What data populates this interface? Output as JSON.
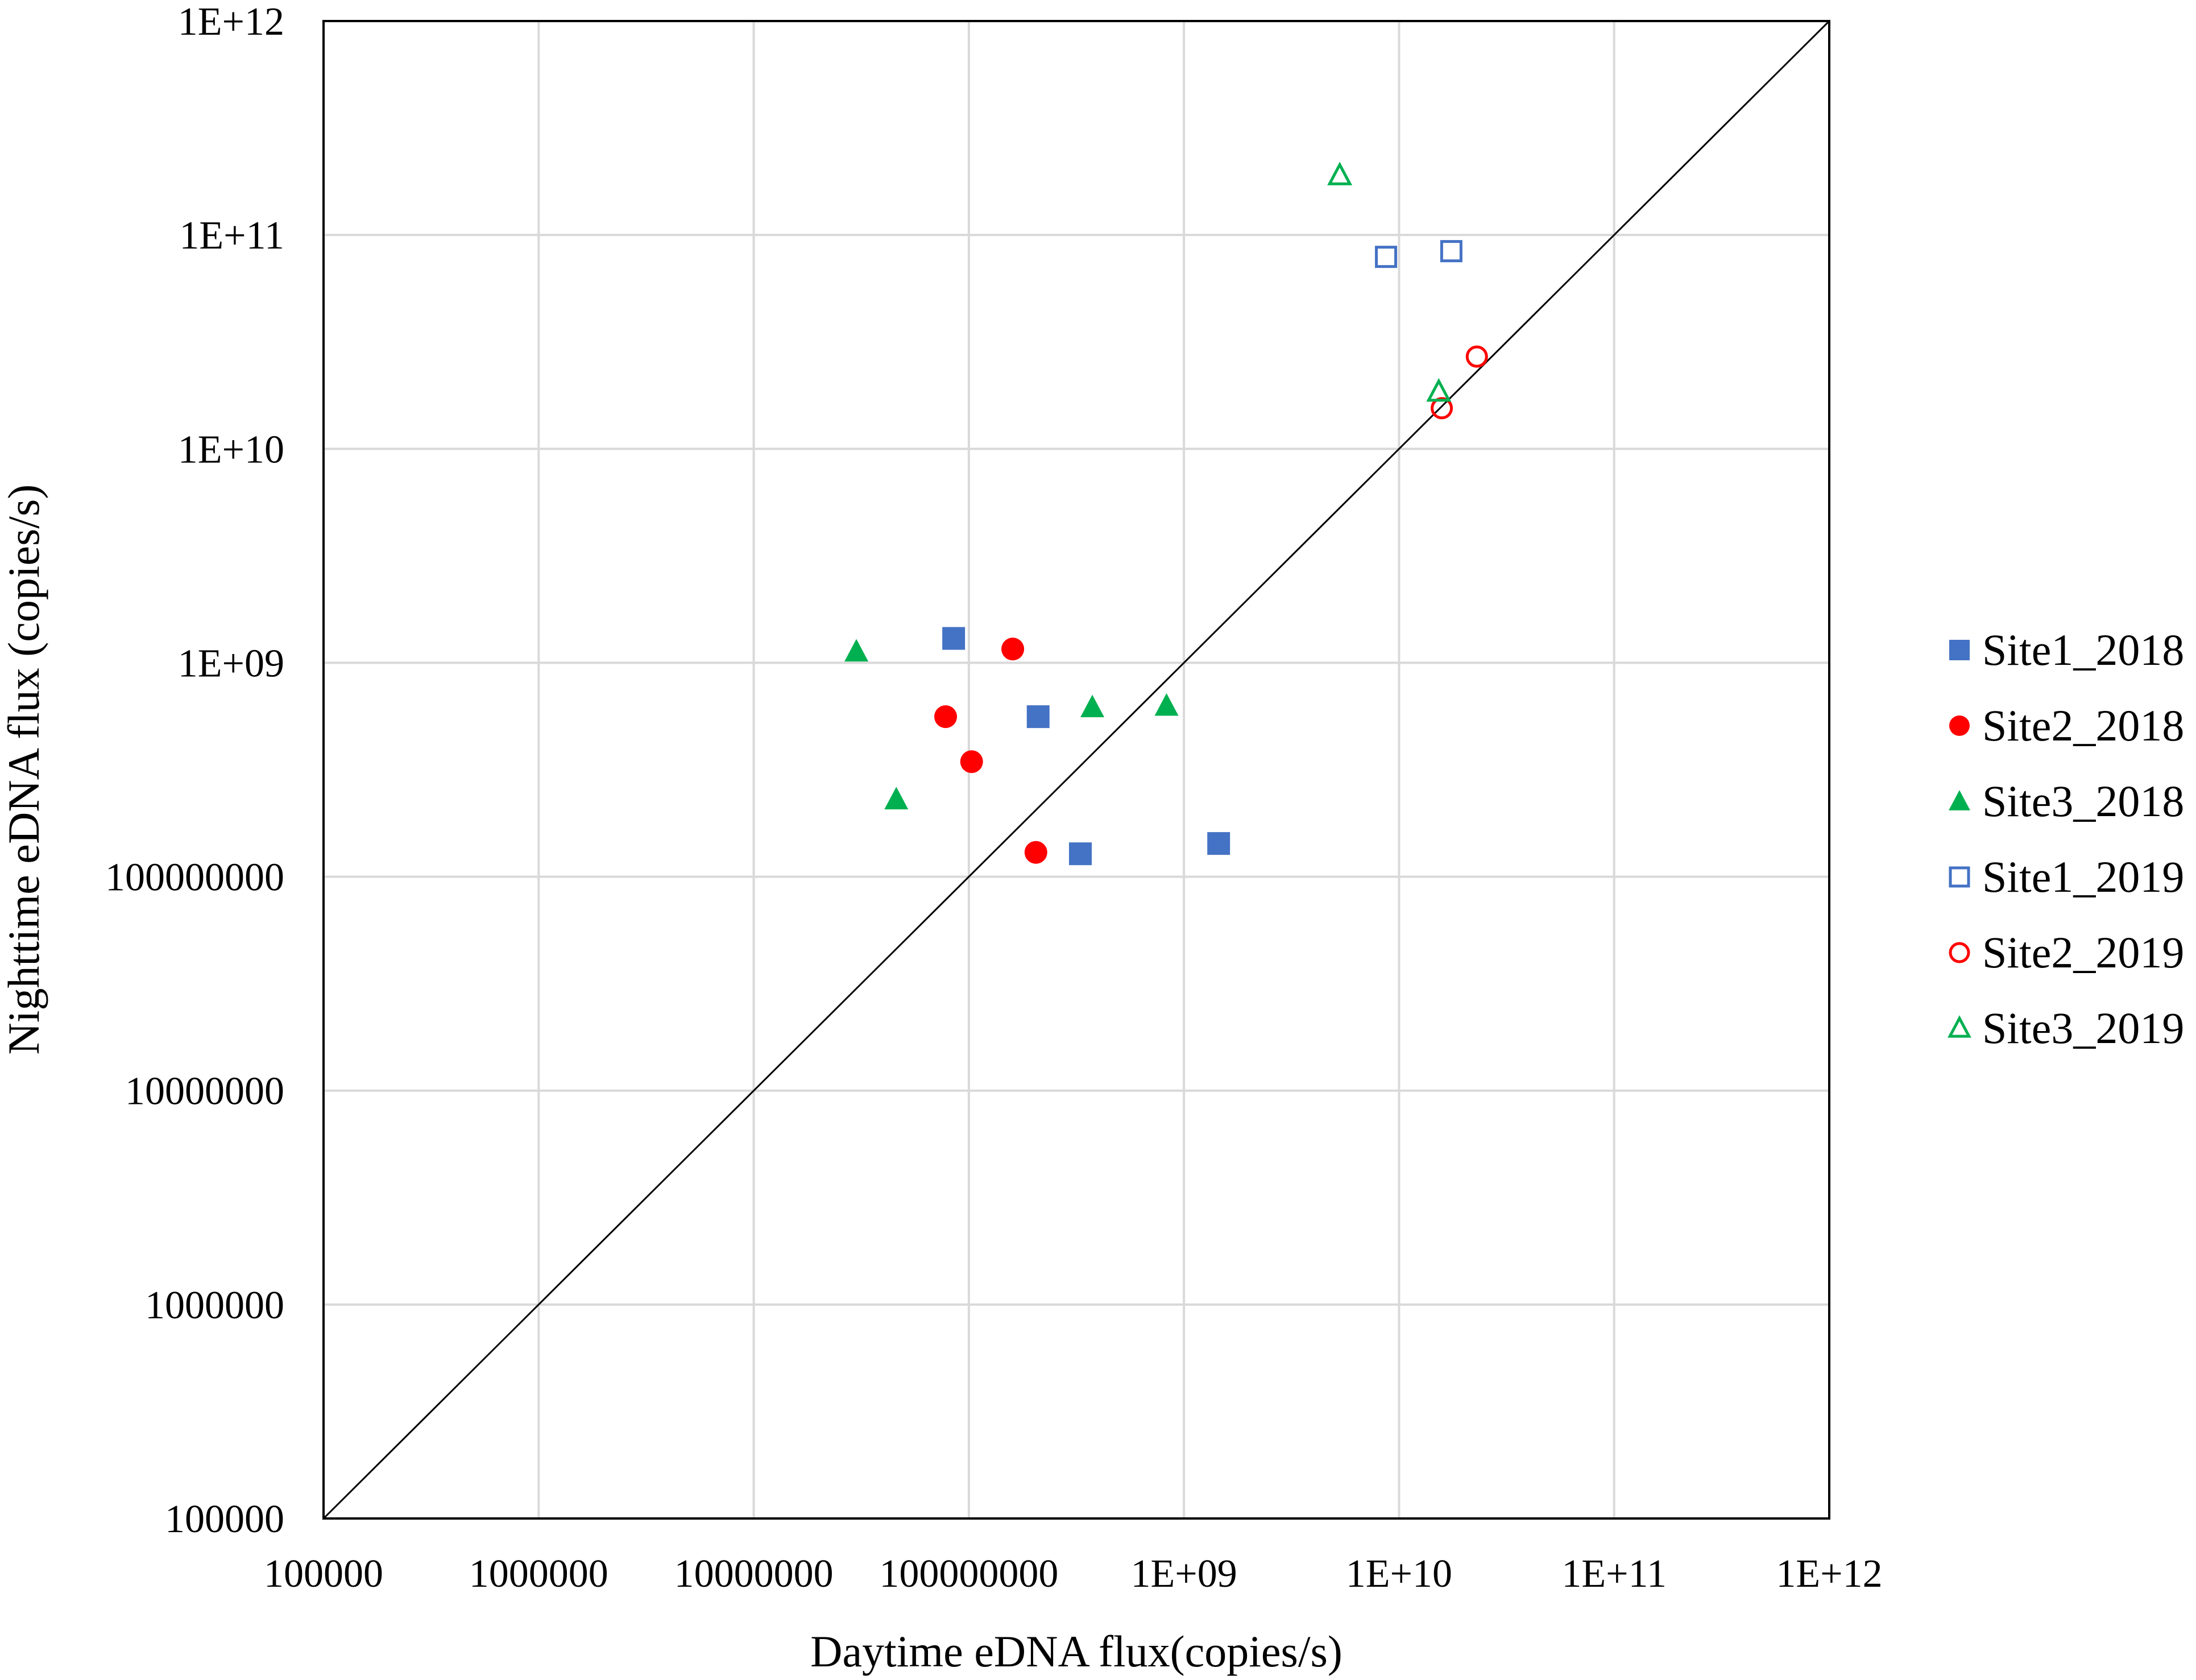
{
  "chart_data": {
    "type": "scatter",
    "x_scale": "log",
    "y_scale": "log",
    "xlim": [
      100000,
      1000000000000
    ],
    "ylim": [
      100000,
      1000000000000
    ],
    "xlabel": "Daytime eDNA flux(copies/s)",
    "ylabel": "Nighttime eDNA flux (copies/s)",
    "x_tick_labels": [
      "100000",
      "1000000",
      "10000000",
      "100000000",
      "1E+09",
      "1E+10",
      "1E+11",
      "1E+12"
    ],
    "y_tick_labels": [
      "100000",
      "1000000",
      "10000000",
      "100000000",
      "1E+09",
      "1E+10",
      "1E+11",
      "1E+12"
    ],
    "grid": true,
    "legend_position": "right",
    "reference_line": "y = x",
    "series": [
      {
        "name": "Site1_2018",
        "marker": "square",
        "filled": true,
        "color": "#4472C4",
        "points": [
          [
            85000000,
            1300000000
          ],
          [
            210000000,
            560000000
          ],
          [
            330000000,
            128000000
          ],
          [
            1450000000,
            143000000
          ]
        ]
      },
      {
        "name": "Site2_2018",
        "marker": "circle",
        "filled": true,
        "color": "#FF0000",
        "points": [
          [
            160000000,
            1160000000
          ],
          [
            78000000,
            560000000
          ],
          [
            103000000,
            345000000
          ],
          [
            205000000,
            130000000
          ]
        ]
      },
      {
        "name": "Site3_2018",
        "marker": "triangle",
        "filled": true,
        "color": "#00B050",
        "points": [
          [
            30000000,
            1130000000
          ],
          [
            375000000,
            620000000
          ],
          [
            830000000,
            630000000
          ],
          [
            46000000,
            230000000
          ]
        ]
      },
      {
        "name": "Site1_2019",
        "marker": "square",
        "filled": false,
        "color": "#4472C4",
        "points": [
          [
            8700000000,
            79000000000
          ],
          [
            17500000000,
            84000000000
          ]
        ]
      },
      {
        "name": "Site2_2019",
        "marker": "circle",
        "filled": false,
        "color": "#FF0000",
        "points": [
          [
            23000000000,
            27000000000
          ],
          [
            15800000000,
            15500000000
          ]
        ]
      },
      {
        "name": "Site3_2019",
        "marker": "triangle",
        "filled": false,
        "color": "#00B050",
        "points": [
          [
            5300000000,
            190000000000
          ],
          [
            15300000000,
            18500000000
          ]
        ]
      }
    ]
  }
}
